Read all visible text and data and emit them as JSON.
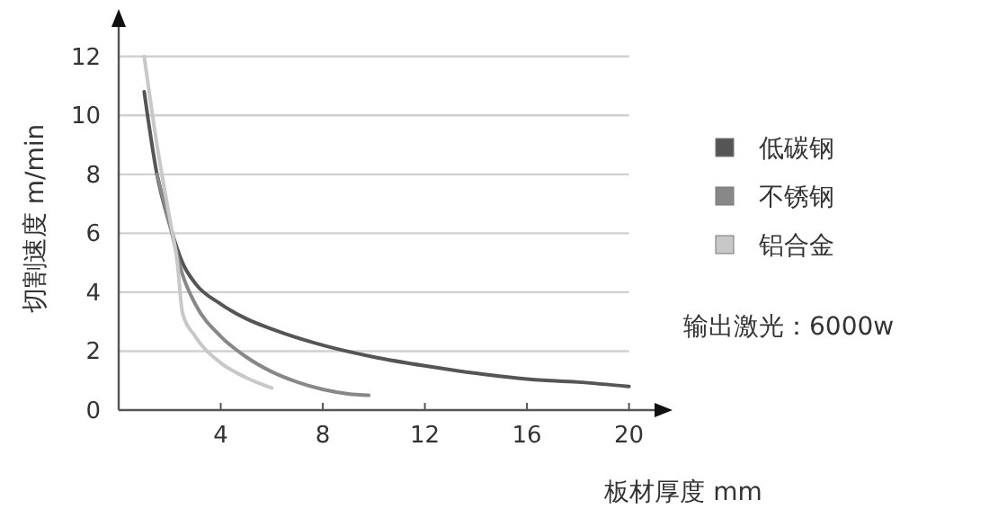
{
  "chart_data": {
    "type": "line",
    "xlabel": "板材厚度  mm",
    "ylabel": "切割速度  m/min",
    "xlim": [
      0,
      21
    ],
    "ylim": [
      0,
      13
    ],
    "xticks": [
      4,
      8,
      12,
      16,
      20
    ],
    "yticks": [
      0,
      2,
      4,
      6,
      8,
      10,
      12
    ],
    "grid": "y",
    "legend": "right",
    "annotations": [
      "输出激光：6000w"
    ],
    "series": [
      {
        "name": "低碳钢",
        "color": "#555555",
        "x": [
          1,
          1.5,
          2,
          2.5,
          3,
          4,
          5,
          6,
          8,
          10,
          12,
          14,
          16,
          18,
          20
        ],
        "values": [
          10.8,
          8,
          6.3,
          5,
          4.3,
          3.6,
          3.1,
          2.75,
          2.2,
          1.8,
          1.5,
          1.25,
          1.05,
          0.95,
          0.8
        ]
      },
      {
        "name": "不锈钢",
        "color": "#888888",
        "x": [
          1.5,
          2,
          2.5,
          3,
          4,
          5,
          6,
          7,
          8,
          9,
          9.8
        ],
        "values": [
          8,
          6.3,
          4.6,
          3.6,
          2.5,
          1.8,
          1.3,
          0.95,
          0.7,
          0.55,
          0.5
        ]
      },
      {
        "name": "铝合金",
        "color": "#c8c8c8",
        "x": [
          1,
          1.5,
          2,
          2.3,
          2.5,
          3,
          4,
          5,
          6
        ],
        "values": [
          12,
          9,
          6.5,
          5,
          3.3,
          2.5,
          1.6,
          1.1,
          0.75
        ]
      }
    ]
  }
}
